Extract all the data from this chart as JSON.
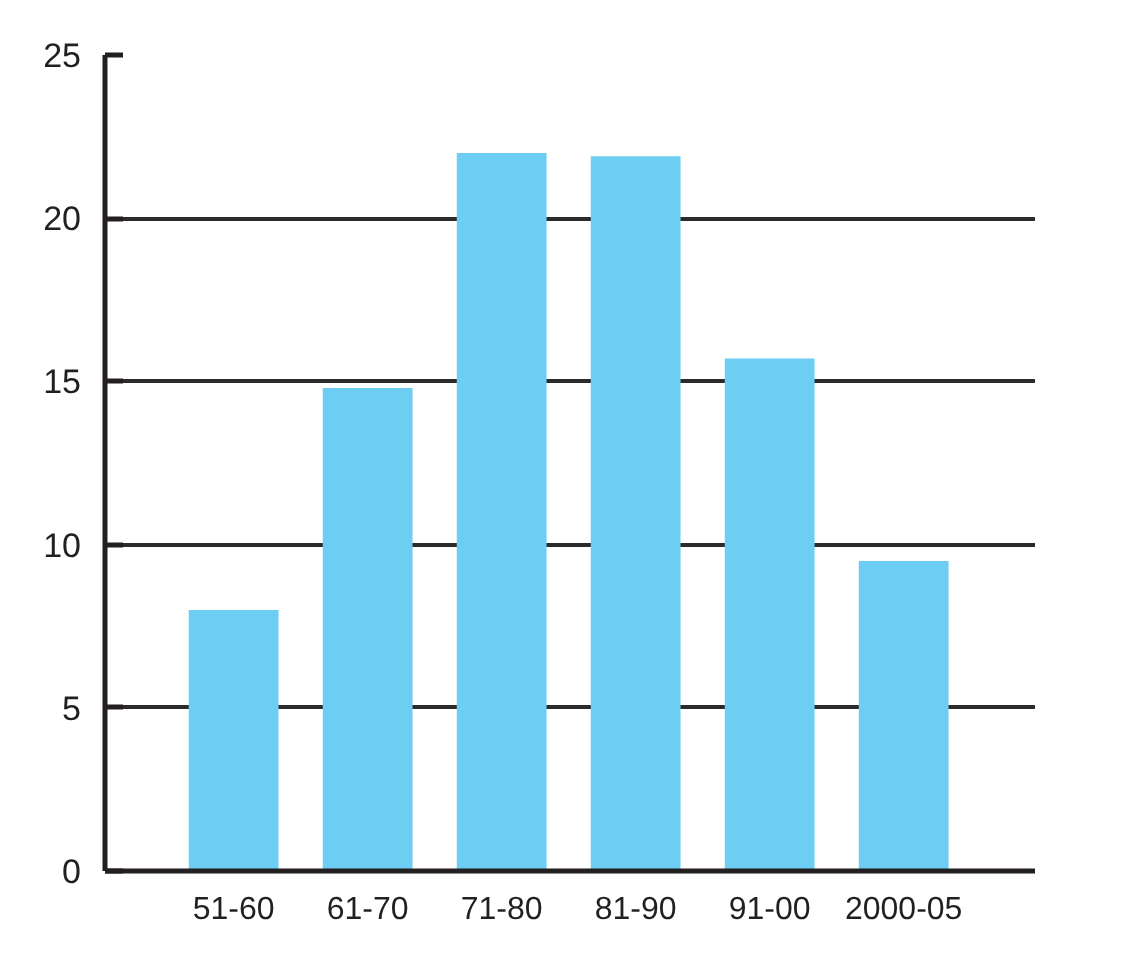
{
  "chart_data": {
    "type": "bar",
    "categories": [
      "51-60",
      "61-70",
      "71-80",
      "81-90",
      "91-00",
      "2000-05"
    ],
    "values": [
      8,
      14.8,
      22,
      21.9,
      15.7,
      9.5
    ],
    "color": "#6dcdf2",
    "ylim": [
      0,
      25
    ],
    "yticks": [
      0,
      5,
      10,
      15,
      20,
      25
    ],
    "grid": "y"
  }
}
